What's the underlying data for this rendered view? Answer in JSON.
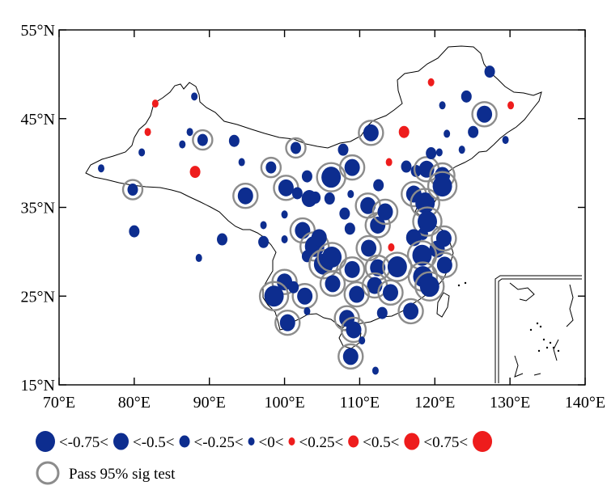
{
  "map": {
    "lon_range": [
      70,
      140
    ],
    "lat_range": [
      15,
      55
    ],
    "x_ticks": [
      {
        "lon": 70,
        "label": "70°E"
      },
      {
        "lon": 80,
        "label": "80°E"
      },
      {
        "lon": 90,
        "label": "90°E"
      },
      {
        "lon": 100,
        "label": "100°E"
      },
      {
        "lon": 110,
        "label": "110°E"
      },
      {
        "lon": 120,
        "label": "120°E"
      },
      {
        "lon": 130,
        "label": "130°E"
      },
      {
        "lon": 140,
        "label": "140°E"
      }
    ],
    "y_ticks": [
      {
        "lat": 55,
        "label": "55°N"
      },
      {
        "lat": 45,
        "label": "45°N"
      },
      {
        "lat": 35,
        "label": "35°N"
      },
      {
        "lat": 25,
        "label": "25°N"
      },
      {
        "lat": 15,
        "label": "15°N"
      }
    ],
    "colors": {
      "negative": "#0d2d8f",
      "positive": "#ee1c1c",
      "sig_ring": "#8c8c8c",
      "border": "#000000"
    }
  },
  "legend": {
    "items": [
      {
        "label": "<-0.75<",
        "class": "n4"
      },
      {
        "label": "<-0.5<",
        "class": "n3"
      },
      {
        "label": "<-0.25<",
        "class": "n2"
      },
      {
        "label": "<0<",
        "class": "n1"
      },
      {
        "label": "<0.25<",
        "class": "p1"
      },
      {
        "label": "<0.5<",
        "class": "p2"
      },
      {
        "label": "<0.75<",
        "class": "p3"
      },
      {
        "label": "",
        "class": "p4"
      }
    ],
    "sig_label": "Pass 95% sig test"
  },
  "stations": [
    {
      "lon": 75.6,
      "lat": 39.4,
      "class": "n1",
      "sig": false
    },
    {
      "lon": 79.8,
      "lat": 37.0,
      "class": "n2",
      "sig": true
    },
    {
      "lon": 80.0,
      "lat": 32.3,
      "class": "n2",
      "sig": false
    },
    {
      "lon": 81.0,
      "lat": 41.2,
      "class": "n1",
      "sig": false
    },
    {
      "lon": 82.8,
      "lat": 46.7,
      "class": "p1",
      "sig": false
    },
    {
      "lon": 81.8,
      "lat": 43.5,
      "class": "p1",
      "sig": false
    },
    {
      "lon": 86.4,
      "lat": 42.1,
      "class": "n1",
      "sig": false
    },
    {
      "lon": 87.4,
      "lat": 43.5,
      "class": "n1",
      "sig": false
    },
    {
      "lon": 88.0,
      "lat": 47.5,
      "class": "n1",
      "sig": false
    },
    {
      "lon": 88.1,
      "lat": 39.0,
      "class": "p2",
      "sig": false
    },
    {
      "lon": 89.1,
      "lat": 42.6,
      "class": "n2",
      "sig": true
    },
    {
      "lon": 93.3,
      "lat": 42.5,
      "class": "n2",
      "sig": false
    },
    {
      "lon": 94.3,
      "lat": 40.1,
      "class": "n1",
      "sig": false
    },
    {
      "lon": 94.8,
      "lat": 36.3,
      "class": "n3",
      "sig": true
    },
    {
      "lon": 91.7,
      "lat": 31.4,
      "class": "n2",
      "sig": false
    },
    {
      "lon": 88.6,
      "lat": 29.3,
      "class": "n1",
      "sig": false
    },
    {
      "lon": 97.2,
      "lat": 33.0,
      "class": "n1",
      "sig": false
    },
    {
      "lon": 97.2,
      "lat": 31.1,
      "class": "n2",
      "sig": false
    },
    {
      "lon": 98.2,
      "lat": 39.5,
      "class": "n2",
      "sig": true
    },
    {
      "lon": 101.5,
      "lat": 41.7,
      "class": "n2",
      "sig": true
    },
    {
      "lon": 100.0,
      "lat": 34.2,
      "class": "n1",
      "sig": false
    },
    {
      "lon": 100.0,
      "lat": 31.4,
      "class": "n1",
      "sig": false
    },
    {
      "lon": 100.2,
      "lat": 37.2,
      "class": "n3",
      "sig": true
    },
    {
      "lon": 101.7,
      "lat": 36.6,
      "class": "n2",
      "sig": false
    },
    {
      "lon": 103.0,
      "lat": 38.5,
      "class": "n2",
      "sig": false
    },
    {
      "lon": 103.3,
      "lat": 36.0,
      "class": "n3",
      "sig": false
    },
    {
      "lon": 104.1,
      "lat": 36.1,
      "class": "n2",
      "sig": false
    },
    {
      "lon": 106.2,
      "lat": 38.4,
      "class": "n4",
      "sig": true
    },
    {
      "lon": 106.0,
      "lat": 36.0,
      "class": "n2",
      "sig": false
    },
    {
      "lon": 102.4,
      "lat": 32.4,
      "class": "n3",
      "sig": true
    },
    {
      "lon": 104.0,
      "lat": 30.6,
      "class": "n4",
      "sig": true
    },
    {
      "lon": 104.6,
      "lat": 31.6,
      "class": "n3",
      "sig": false
    },
    {
      "lon": 103.0,
      "lat": 29.5,
      "class": "n2",
      "sig": false
    },
    {
      "lon": 105.2,
      "lat": 28.6,
      "class": "n4",
      "sig": true
    },
    {
      "lon": 106.3,
      "lat": 29.4,
      "class": "n4",
      "sig": true
    },
    {
      "lon": 106.4,
      "lat": 26.4,
      "class": "n3",
      "sig": true
    },
    {
      "lon": 102.7,
      "lat": 25.0,
      "class": "n3",
      "sig": true
    },
    {
      "lon": 100.0,
      "lat": 26.6,
      "class": "n3",
      "sig": true
    },
    {
      "lon": 101.2,
      "lat": 26.0,
      "class": "n2",
      "sig": false
    },
    {
      "lon": 98.6,
      "lat": 25.0,
      "class": "n4",
      "sig": true
    },
    {
      "lon": 103.0,
      "lat": 23.3,
      "class": "n1",
      "sig": false
    },
    {
      "lon": 100.4,
      "lat": 22.0,
      "class": "n3",
      "sig": true
    },
    {
      "lon": 108.0,
      "lat": 34.3,
      "class": "n2",
      "sig": false
    },
    {
      "lon": 108.7,
      "lat": 32.6,
      "class": "n2",
      "sig": false
    },
    {
      "lon": 108.8,
      "lat": 36.5,
      "class": "n1",
      "sig": false
    },
    {
      "lon": 107.8,
      "lat": 41.5,
      "class": "n2",
      "sig": false
    },
    {
      "lon": 109.0,
      "lat": 39.5,
      "class": "n3",
      "sig": true
    },
    {
      "lon": 111.5,
      "lat": 43.4,
      "class": "n3",
      "sig": true
    },
    {
      "lon": 111.1,
      "lat": 35.2,
      "class": "n3",
      "sig": true
    },
    {
      "lon": 112.5,
      "lat": 37.5,
      "class": "n2",
      "sig": false
    },
    {
      "lon": 112.4,
      "lat": 33.0,
      "class": "n3",
      "sig": true
    },
    {
      "lon": 113.4,
      "lat": 34.5,
      "class": "n3",
      "sig": true
    },
    {
      "lon": 111.2,
      "lat": 30.4,
      "class": "n3",
      "sig": true
    },
    {
      "lon": 109.0,
      "lat": 28.0,
      "class": "n3",
      "sig": true
    },
    {
      "lon": 112.4,
      "lat": 28.2,
      "class": "n3",
      "sig": true
    },
    {
      "lon": 112.0,
      "lat": 26.2,
      "class": "n3",
      "sig": true
    },
    {
      "lon": 109.6,
      "lat": 25.2,
      "class": "n3",
      "sig": true
    },
    {
      "lon": 114.1,
      "lat": 25.4,
      "class": "n3",
      "sig": true
    },
    {
      "lon": 108.3,
      "lat": 22.5,
      "class": "n3",
      "sig": true
    },
    {
      "lon": 109.2,
      "lat": 21.2,
      "class": "n3",
      "sig": true
    },
    {
      "lon": 110.3,
      "lat": 20.0,
      "class": "n1",
      "sig": false
    },
    {
      "lon": 108.8,
      "lat": 18.2,
      "class": "n3",
      "sig": true
    },
    {
      "lon": 112.1,
      "lat": 16.6,
      "class": "n1",
      "sig": false
    },
    {
      "lon": 113.0,
      "lat": 23.1,
      "class": "n2",
      "sig": false
    },
    {
      "lon": 116.8,
      "lat": 23.3,
      "class": "n3",
      "sig": true
    },
    {
      "lon": 115.0,
      "lat": 28.3,
      "class": "n4",
      "sig": true
    },
    {
      "lon": 114.2,
      "lat": 30.5,
      "class": "p1",
      "sig": false
    },
    {
      "lon": 113.9,
      "lat": 40.1,
      "class": "p1",
      "sig": false
    },
    {
      "lon": 115.9,
      "lat": 43.5,
      "class": "p2",
      "sig": false
    },
    {
      "lon": 116.2,
      "lat": 39.6,
      "class": "n2",
      "sig": false
    },
    {
      "lon": 117.5,
      "lat": 39.1,
      "class": "n2",
      "sig": false
    },
    {
      "lon": 117.2,
      "lat": 36.5,
      "class": "n3",
      "sig": true
    },
    {
      "lon": 118.7,
      "lat": 35.5,
      "class": "n4",
      "sig": true
    },
    {
      "lon": 118.4,
      "lat": 32.0,
      "class": "n2",
      "sig": false
    },
    {
      "lon": 119.0,
      "lat": 33.4,
      "class": "n4",
      "sig": true
    },
    {
      "lon": 117.2,
      "lat": 31.6,
      "class": "n3",
      "sig": false
    },
    {
      "lon": 120.3,
      "lat": 30.3,
      "class": "n3",
      "sig": false
    },
    {
      "lon": 121.2,
      "lat": 31.5,
      "class": "n3",
      "sig": true
    },
    {
      "lon": 118.3,
      "lat": 29.6,
      "class": "n4",
      "sig": true
    },
    {
      "lon": 121.3,
      "lat": 28.5,
      "class": "n3",
      "sig": true
    },
    {
      "lon": 118.4,
      "lat": 27.2,
      "class": "n4",
      "sig": true
    },
    {
      "lon": 119.3,
      "lat": 26.1,
      "class": "n4",
      "sig": true
    },
    {
      "lon": 118.9,
      "lat": 39.3,
      "class": "n3",
      "sig": true
    },
    {
      "lon": 119.5,
      "lat": 41.1,
      "class": "n2",
      "sig": false
    },
    {
      "lon": 121.0,
      "lat": 38.6,
      "class": "n3",
      "sig": true
    },
    {
      "lon": 121.0,
      "lat": 37.4,
      "class": "n4",
      "sig": true
    },
    {
      "lon": 120.6,
      "lat": 41.2,
      "class": "n1",
      "sig": false
    },
    {
      "lon": 121.6,
      "lat": 43.3,
      "class": "n1",
      "sig": false
    },
    {
      "lon": 123.6,
      "lat": 41.5,
      "class": "n1",
      "sig": false
    },
    {
      "lon": 125.1,
      "lat": 43.5,
      "class": "n2",
      "sig": false
    },
    {
      "lon": 124.2,
      "lat": 47.5,
      "class": "n2",
      "sig": false
    },
    {
      "lon": 126.6,
      "lat": 45.5,
      "class": "n3",
      "sig": true
    },
    {
      "lon": 127.3,
      "lat": 50.3,
      "class": "n2",
      "sig": false
    },
    {
      "lon": 121.0,
      "lat": 46.5,
      "class": "n1",
      "sig": false
    },
    {
      "lon": 119.5,
      "lat": 49.1,
      "class": "p1",
      "sig": false
    },
    {
      "lon": 130.1,
      "lat": 46.5,
      "class": "p1",
      "sig": false
    },
    {
      "lon": 129.4,
      "lat": 42.6,
      "class": "n1",
      "sig": false
    }
  ]
}
